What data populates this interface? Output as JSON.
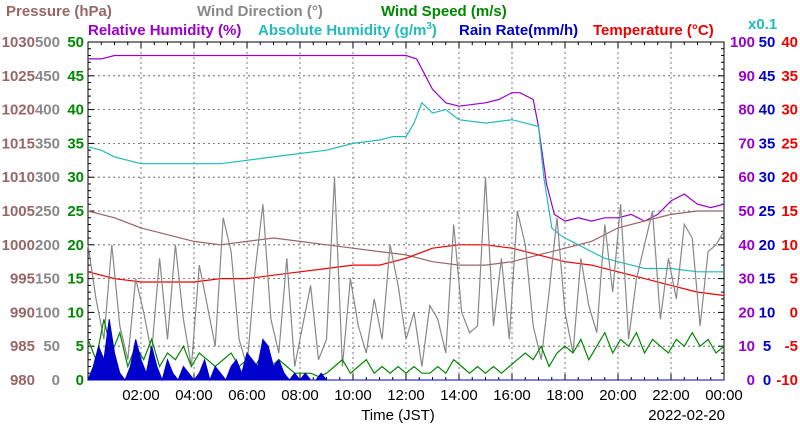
{
  "chart_data": {
    "type": "line",
    "x_ticks": [
      "02:00",
      "04:00",
      "06:00",
      "08:00",
      "10:00",
      "12:00",
      "14:00",
      "16:00",
      "18:00",
      "20:00",
      "22:00",
      "00:00"
    ],
    "xlim_hours": [
      0,
      24
    ],
    "xlabel": "Time (JST)",
    "date": "2022-02-20",
    "legend": {
      "pressure": "Pressure (hPa)",
      "wind_direction": "Wind Direction (°)",
      "wind_speed": "Wind Speed (m/s)",
      "relative_humidity": "Relative Humidity (%)",
      "absolute_humidity_prefix": "Absolute Humidity (g/m",
      "absolute_humidity_sup": "3",
      "absolute_humidity_suffix": ")",
      "rain_rate": "Rain Rate(mm/h)",
      "temperature": "Temperature (°C)",
      "abs_scale_note": "x0.1"
    },
    "axes": {
      "pressure": {
        "ylim": [
          980,
          1030
        ],
        "ticks": [
          "980",
          "985",
          "990",
          "995",
          "1000",
          "1005",
          "1010",
          "1015",
          "1020",
          "1025",
          "1030"
        ],
        "color": "#996666"
      },
      "wind_direction": {
        "ylim": [
          0,
          500
        ],
        "ticks": [
          "0",
          "50",
          "100",
          "150",
          "200",
          "250",
          "300",
          "350",
          "400",
          "450",
          "500"
        ],
        "color": "#888888"
      },
      "wind_speed": {
        "ylim": [
          0,
          50
        ],
        "ticks": [
          "0",
          "5",
          "10",
          "15",
          "20",
          "25",
          "30",
          "35",
          "40",
          "45",
          "50"
        ],
        "color": "#008800"
      },
      "humidity": {
        "ylim": [
          0,
          100
        ],
        "ticks": [
          "0",
          "10",
          "20",
          "30",
          "40",
          "50",
          "60",
          "70",
          "80",
          "90",
          "100"
        ],
        "color": "#9900cc"
      },
      "rain": {
        "ylim": [
          0,
          50
        ],
        "ticks": [
          "0",
          "5",
          "10",
          "15",
          "20",
          "25",
          "30",
          "35",
          "40",
          "45",
          "50"
        ],
        "color": "#0000cc"
      },
      "temperature": {
        "ylim": [
          -10,
          40
        ],
        "ticks": [
          "-10",
          "-5",
          "0",
          "5",
          "10",
          "15",
          "20",
          "25",
          "30",
          "35",
          "40"
        ],
        "color": "#ee0000"
      }
    },
    "series": [
      {
        "key": "relative_humidity",
        "axis": "humidity",
        "color": "#9900cc",
        "x": [
          0,
          0.5,
          1,
          2,
          4,
          6,
          8,
          10,
          11,
          12,
          12.4,
          12.6,
          13,
          13.5,
          14,
          15,
          15.5,
          16,
          16.3,
          16.8,
          17,
          17.3,
          17.6,
          18,
          18.5,
          19,
          19.5,
          20,
          20.5,
          21,
          21.5,
          22,
          22.5,
          23,
          23.5,
          24
        ],
        "y": [
          95,
          95,
          96,
          96,
          96,
          96,
          96,
          96,
          96,
          96,
          95,
          92,
          86,
          82,
          81,
          82,
          83,
          85,
          85,
          83,
          75,
          58,
          49,
          47,
          48,
          47,
          48,
          48,
          49,
          47,
          49,
          53,
          55,
          52,
          51,
          52
        ]
      },
      {
        "key": "absolute_humidity",
        "axis": "humidity",
        "color": "#22bbbb",
        "x": [
          0,
          0.5,
          1,
          2,
          3,
          4,
          5,
          6,
          7,
          8,
          9,
          10,
          11,
          11.5,
          12,
          12.3,
          12.6,
          13,
          13.5,
          14,
          15,
          16,
          16.5,
          17,
          17.2,
          17.5,
          17.8,
          18,
          18.5,
          19,
          19.5,
          20,
          20.5,
          21,
          22,
          23,
          24
        ],
        "y": [
          69,
          68,
          66,
          64,
          64,
          64,
          64,
          65,
          66,
          67,
          68,
          70,
          71,
          72,
          72,
          76,
          82,
          79,
          80,
          77,
          76,
          77,
          76,
          75,
          60,
          45,
          43,
          42,
          40,
          38,
          36,
          35,
          34,
          33,
          33,
          32,
          32
        ]
      },
      {
        "key": "pressure",
        "axis": "pressure",
        "color": "#996666",
        "x": [
          0,
          1,
          2,
          3,
          4,
          5,
          6,
          7,
          8,
          9,
          10,
          11,
          12,
          13,
          14,
          15,
          16,
          17,
          18,
          19,
          20,
          21,
          22,
          23,
          24
        ],
        "y": [
          1005,
          1004,
          1002.5,
          1001.5,
          1000.5,
          1000,
          1000.5,
          1001,
          1000.5,
          1000,
          999.5,
          999,
          998.5,
          997.5,
          997,
          997,
          997.5,
          998.5,
          999.5,
          1000.5,
          1002.5,
          1003.5,
          1004.5,
          1005,
          1005
        ]
      },
      {
        "key": "temperature",
        "axis": "temperature",
        "color": "#ee0000",
        "x": [
          0,
          1,
          2,
          3,
          4,
          5,
          6,
          7,
          8,
          9,
          10,
          11,
          12,
          13,
          14,
          15,
          16,
          17,
          18,
          19,
          20,
          21,
          22,
          23,
          24
        ],
        "y": [
          6,
          5,
          4.5,
          4.5,
          4.5,
          5,
          5,
          5.5,
          6,
          6.5,
          7,
          7,
          8,
          9.5,
          10,
          10,
          9.5,
          8.5,
          7.5,
          7,
          6,
          5,
          4,
          3,
          2.5
        ]
      },
      {
        "key": "wind_direction",
        "axis": "wind_direction",
        "color": "#888888",
        "x": [
          0,
          0.3,
          0.6,
          0.9,
          1.2,
          1.5,
          1.8,
          2.1,
          2.4,
          2.7,
          3,
          3.3,
          3.6,
          3.9,
          4.2,
          4.5,
          4.8,
          5.1,
          5.4,
          5.7,
          6,
          6.3,
          6.6,
          6.9,
          7.2,
          7.5,
          7.8,
          8.1,
          8.4,
          8.7,
          9,
          9.3,
          9.6,
          9.9,
          10.2,
          10.5,
          10.8,
          11.1,
          11.4,
          11.7,
          12,
          12.3,
          12.6,
          12.9,
          13.2,
          13.5,
          13.8,
          14.1,
          14.4,
          14.7,
          15,
          15.3,
          15.6,
          15.9,
          16.2,
          16.5,
          16.8,
          17.1,
          17.4,
          17.7,
          18,
          18.3,
          18.6,
          18.9,
          19.2,
          19.5,
          19.8,
          20.1,
          20.4,
          20.7,
          21,
          21.3,
          21.6,
          21.9,
          22.2,
          22.5,
          22.8,
          23.1,
          23.4,
          23.7,
          24
        ],
        "y": [
          200,
          120,
          60,
          200,
          80,
          30,
          150,
          100,
          40,
          180,
          60,
          200,
          90,
          20,
          170,
          110,
          50,
          240,
          190,
          60,
          20,
          160,
          260,
          90,
          40,
          180,
          20,
          80,
          140,
          30,
          60,
          300,
          20,
          150,
          80,
          40,
          120,
          60,
          200,
          140,
          60,
          100,
          20,
          110,
          90,
          40,
          230,
          100,
          70,
          80,
          300,
          80,
          180,
          60,
          250,
          200,
          80,
          30,
          130,
          240,
          100,
          40,
          180,
          110,
          70,
          230,
          130,
          260,
          60,
          150,
          200,
          250,
          90,
          180,
          120,
          230,
          210,
          80,
          190,
          200,
          220
        ]
      },
      {
        "key": "wind_speed",
        "axis": "wind_speed",
        "color": "#008800",
        "x": [
          0,
          0.3,
          0.6,
          0.9,
          1.2,
          1.5,
          1.8,
          2.1,
          2.4,
          2.7,
          3,
          3.3,
          3.6,
          3.9,
          4.2,
          4.5,
          4.8,
          5.1,
          5.4,
          5.7,
          6,
          6.3,
          6.6,
          6.9,
          7.2,
          7.5,
          7.8,
          8.1,
          8.4,
          8.7,
          9,
          9.3,
          9.6,
          9.9,
          10.2,
          10.5,
          10.8,
          11.1,
          11.4,
          11.7,
          12,
          12.3,
          12.6,
          12.9,
          13.2,
          13.5,
          13.8,
          14.1,
          14.4,
          14.7,
          15,
          15.3,
          15.6,
          15.9,
          16.2,
          16.5,
          16.8,
          17.1,
          17.4,
          17.7,
          18,
          18.3,
          18.6,
          18.9,
          19.2,
          19.5,
          19.8,
          20.1,
          20.4,
          20.7,
          21,
          21.3,
          21.6,
          21.9,
          22.2,
          22.5,
          22.8,
          23.1,
          23.4,
          23.7,
          24
        ],
        "y": [
          6,
          3,
          9,
          4,
          7,
          2,
          5,
          3,
          6,
          2,
          4,
          3,
          5,
          2,
          4,
          3,
          2,
          3,
          4,
          2,
          3,
          2,
          4,
          2,
          3,
          2,
          1,
          1,
          1,
          0.5,
          1,
          2,
          3,
          1,
          2,
          3,
          1,
          2,
          1,
          2,
          1,
          2,
          1,
          1,
          2,
          1,
          3,
          2,
          1,
          2,
          1,
          2,
          1,
          2,
          3,
          4,
          3,
          5,
          2,
          4,
          5,
          4,
          6,
          3,
          5,
          7,
          4,
          6,
          5,
          7,
          4,
          6,
          5,
          4,
          6,
          5,
          7,
          5,
          6,
          4,
          5
        ]
      },
      {
        "key": "rain_rate",
        "axis": "rain",
        "color": "#0000cc",
        "fill": true,
        "x": [
          0,
          0.2,
          0.4,
          0.6,
          0.8,
          1,
          1.2,
          1.4,
          1.6,
          1.8,
          2,
          2.2,
          2.4,
          2.6,
          2.8,
          3,
          3.2,
          3.4,
          3.6,
          3.8,
          4,
          4.2,
          4.4,
          4.6,
          4.8,
          5,
          5.2,
          5.4,
          5.6,
          5.8,
          6,
          6.2,
          6.4,
          6.6,
          6.8,
          7,
          7.2,
          7.4,
          7.6,
          7.8,
          8,
          8.2,
          8.4,
          8.6,
          8.8,
          9,
          24
        ],
        "y": [
          0,
          2,
          5,
          3,
          9,
          4,
          1,
          0,
          2,
          6,
          3,
          1,
          5,
          2,
          0,
          3,
          1,
          0,
          2,
          1,
          0,
          1,
          3,
          0,
          2,
          1,
          0,
          2,
          3,
          1,
          4,
          3,
          2,
          6,
          5,
          2,
          3,
          1,
          0,
          1,
          0,
          1,
          0,
          0,
          1,
          0,
          0
        ]
      }
    ],
    "grid": true
  }
}
